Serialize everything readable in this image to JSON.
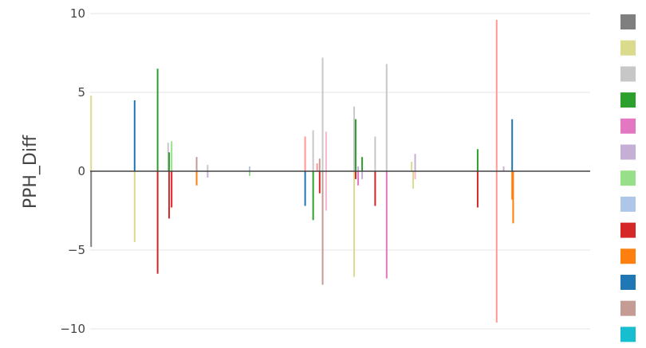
{
  "chart_data": {
    "type": "bar",
    "title": "",
    "xlabel": "",
    "ylabel": "PPH_Diff",
    "ylim": [
      -10.3,
      10.3
    ],
    "yticks": [
      {
        "value": 10,
        "label": "10"
      },
      {
        "value": 5,
        "label": "5"
      },
      {
        "value": 0,
        "label": "0"
      },
      {
        "value": -5,
        "label": "−5"
      },
      {
        "value": -10,
        "label": "−10"
      }
    ],
    "grid": true,
    "x_labels_shown": false,
    "x_range": [
      0,
      100
    ],
    "legend_position": "right",
    "legend_colors": [
      "#7f7f7f",
      "#dbdb8d",
      "#c7c7c7",
      "#2ca02c",
      "#e377c2",
      "#c5b0d5",
      "#98df8a",
      "#aec7e8",
      "#d62728",
      "#ff7f0e",
      "#1f77b4",
      "#c49c94",
      "#17becf"
    ],
    "bars": [
      {
        "x": 0.2,
        "value": 4.8,
        "color": "#dbdb8d"
      },
      {
        "x": 0.2,
        "value": -4.8,
        "color": "#7f7f7f"
      },
      {
        "x": 8.9,
        "value": 4.5,
        "color": "#1f77b4"
      },
      {
        "x": 8.9,
        "value": -4.5,
        "color": "#dbdb8d"
      },
      {
        "x": 13.5,
        "value": 6.5,
        "color": "#2ca02c"
      },
      {
        "x": 13.5,
        "value": -6.5,
        "color": "#d62728"
      },
      {
        "x": 15.6,
        "value": 1.8,
        "color": "#c7c7c7"
      },
      {
        "x": 15.8,
        "value": 1.2,
        "color": "#2ca02c"
      },
      {
        "x": 15.8,
        "value": -3.0,
        "color": "#d62728"
      },
      {
        "x": 16.3,
        "value": 1.9,
        "color": "#98df8a"
      },
      {
        "x": 16.3,
        "value": -2.3,
        "color": "#d62728"
      },
      {
        "x": 21.3,
        "value": 0.9,
        "color": "#c49c94"
      },
      {
        "x": 21.3,
        "value": -0.9,
        "color": "#ff7f0e"
      },
      {
        "x": 23.5,
        "value": 0.4,
        "color": "#c7c7c7"
      },
      {
        "x": 23.5,
        "value": -0.4,
        "color": "#c5b0d5"
      },
      {
        "x": 31.9,
        "value": 0.3,
        "color": "#aec7e8"
      },
      {
        "x": 31.9,
        "value": -0.3,
        "color": "#98df8a"
      },
      {
        "x": 43.0,
        "value": 2.2,
        "color": "#ff9896"
      },
      {
        "x": 43.0,
        "value": -2.2,
        "color": "#1f77b4"
      },
      {
        "x": 44.6,
        "value": 2.6,
        "color": "#c7c7c7"
      },
      {
        "x": 44.6,
        "value": -3.1,
        "color": "#2ca02c"
      },
      {
        "x": 45.4,
        "value": 0.5,
        "color": "#ff9896"
      },
      {
        "x": 45.9,
        "value": 0.8,
        "color": "#c49c94"
      },
      {
        "x": 45.9,
        "value": -1.4,
        "color": "#d62728"
      },
      {
        "x": 46.5,
        "value": 7.2,
        "color": "#c7c7c7"
      },
      {
        "x": 46.5,
        "value": -7.2,
        "color": "#c49c94"
      },
      {
        "x": 47.2,
        "value": 2.5,
        "color": "#f7b6d2"
      },
      {
        "x": 47.2,
        "value": -2.5,
        "color": "#f7b6d2"
      },
      {
        "x": 52.8,
        "value": 4.1,
        "color": "#c7c7c7"
      },
      {
        "x": 52.8,
        "value": -6.7,
        "color": "#dbdb8d"
      },
      {
        "x": 53.1,
        "value": 3.3,
        "color": "#2ca02c"
      },
      {
        "x": 53.1,
        "value": -0.5,
        "color": "#d62728"
      },
      {
        "x": 53.6,
        "value": 0.3,
        "color": "#c5b0d5"
      },
      {
        "x": 53.6,
        "value": -0.9,
        "color": "#e377c2"
      },
      {
        "x": 54.4,
        "value": 0.9,
        "color": "#2ca02c"
      },
      {
        "x": 54.4,
        "value": -0.5,
        "color": "#c5b0d5"
      },
      {
        "x": 57.0,
        "value": 2.2,
        "color": "#c7c7c7"
      },
      {
        "x": 57.0,
        "value": -2.2,
        "color": "#d62728"
      },
      {
        "x": 59.3,
        "value": 6.8,
        "color": "#c7c7c7"
      },
      {
        "x": 59.3,
        "value": -6.8,
        "color": "#e377c2"
      },
      {
        "x": 64.3,
        "value": 0.6,
        "color": "#dbdb8d"
      },
      {
        "x": 64.6,
        "value": -1.1,
        "color": "#dbdb8d"
      },
      {
        "x": 65.0,
        "value": 1.1,
        "color": "#c5b0d5"
      },
      {
        "x": 65.0,
        "value": -0.5,
        "color": "#f7b6d2"
      },
      {
        "x": 77.5,
        "value": 1.4,
        "color": "#2ca02c"
      },
      {
        "x": 77.5,
        "value": -2.3,
        "color": "#d62728"
      },
      {
        "x": 81.3,
        "value": 9.6,
        "color": "#ff9896"
      },
      {
        "x": 81.3,
        "value": -9.6,
        "color": "#ff9896"
      },
      {
        "x": 82.7,
        "value": 0.3,
        "color": "#c5b0d5"
      },
      {
        "x": 84.4,
        "value": 3.3,
        "color": "#1f77b4"
      },
      {
        "x": 84.4,
        "value": -1.8,
        "color": "#ff7f0e"
      },
      {
        "x": 84.6,
        "value": -3.3,
        "color": "#ff7f0e"
      }
    ]
  }
}
